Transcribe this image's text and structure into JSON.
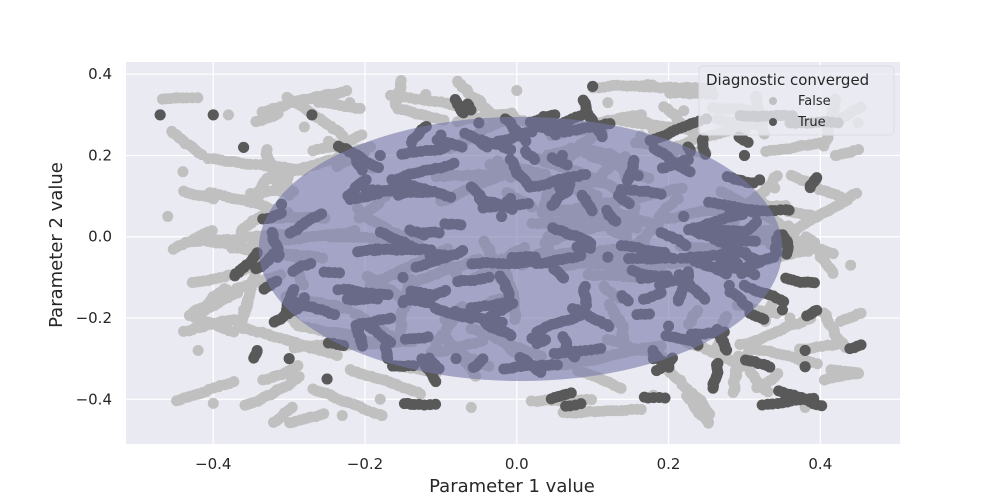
{
  "colors": {
    "background": "#eaeaf2",
    "grid": "#ffffff",
    "false_series": "#c0c0c0",
    "true_series": "#595959",
    "ellipse_fill": "#7575a8"
  },
  "chart_data": {
    "type": "scatter",
    "xlabel": "Parameter 1 value",
    "ylabel": "Parameter 2 value",
    "xlim": [
      -0.515,
      0.505
    ],
    "ylim": [
      -0.51,
      0.43
    ],
    "xticks": [
      -0.4,
      -0.2,
      0.0,
      0.2,
      0.4
    ],
    "xtick_labels": [
      "−0.4",
      "−0.2",
      "0.0",
      "0.2",
      "0.4"
    ],
    "yticks": [
      -0.4,
      -0.2,
      0.0,
      0.2,
      0.4
    ],
    "ytick_labels": [
      "−0.4",
      "−0.2",
      "0.0",
      "0.2",
      "0.4"
    ],
    "grid": true,
    "legend": {
      "title": "Diagnostic converged",
      "placement": "top-right",
      "entries": [
        "False",
        "True"
      ]
    },
    "series": [
      {
        "name": "False",
        "color": "#c0c0c0",
        "point_count_estimate": "thousands of points forming trajectories across x ≈ −0.47..0.45, y ≈ −0.46..0.38",
        "sample_points": [
          [
            -0.46,
            0.05
          ],
          [
            -0.44,
            0.16
          ],
          [
            -0.42,
            -0.28
          ],
          [
            -0.4,
            -0.41
          ],
          [
            -0.38,
            0.3
          ],
          [
            -0.36,
            -0.18
          ],
          [
            -0.34,
            0.1
          ],
          [
            -0.3,
            -0.34
          ],
          [
            -0.28,
            0.27
          ],
          [
            -0.22,
            0.33
          ],
          [
            -0.18,
            -0.4
          ],
          [
            -0.12,
            0.35
          ],
          [
            -0.06,
            -0.42
          ],
          [
            0.0,
            0.36
          ],
          [
            0.06,
            -0.4
          ],
          [
            0.12,
            0.33
          ],
          [
            0.18,
            -0.39
          ],
          [
            0.22,
            0.31
          ],
          [
            0.26,
            -0.36
          ],
          [
            0.3,
            0.26
          ],
          [
            0.34,
            0.12
          ],
          [
            0.36,
            -0.2
          ],
          [
            0.38,
            0.05
          ],
          [
            0.4,
            -0.05
          ],
          [
            0.42,
            0.2
          ],
          [
            0.44,
            -0.07
          ],
          [
            0.45,
            0.28
          ],
          [
            0.38,
            -0.42
          ],
          [
            0.25,
            -0.45
          ],
          [
            -0.23,
            -0.44
          ]
        ]
      },
      {
        "name": "True",
        "color": "#595959",
        "point_count_estimate": "thousands of points, denser within the ellipse region",
        "sample_points": [
          [
            -0.47,
            0.3
          ],
          [
            -0.4,
            0.3
          ],
          [
            -0.36,
            0.22
          ],
          [
            -0.31,
            0.08
          ],
          [
            -0.28,
            -0.15
          ],
          [
            -0.27,
            0.3
          ],
          [
            -0.25,
            -0.35
          ],
          [
            -0.2,
            0.12
          ],
          [
            -0.15,
            -0.1
          ],
          [
            -0.1,
            0.25
          ],
          [
            -0.08,
            -0.3
          ],
          [
            -0.02,
            0.05
          ],
          [
            0.02,
            -0.25
          ],
          [
            0.06,
            0.2
          ],
          [
            0.1,
            0.37
          ],
          [
            0.12,
            -0.05
          ],
          [
            0.16,
            0.15
          ],
          [
            0.18,
            -0.3
          ],
          [
            0.22,
            0.05
          ],
          [
            0.25,
            0.29
          ],
          [
            0.28,
            -0.12
          ],
          [
            0.3,
            0.2
          ],
          [
            0.32,
            0.14
          ],
          [
            0.35,
            -0.18
          ],
          [
            0.38,
            -0.28
          ],
          [
            0.38,
            -0.32
          ],
          [
            0.2,
            -0.22
          ],
          [
            -0.05,
            0.28
          ],
          [
            -0.3,
            -0.3
          ],
          [
            -0.18,
            0.2
          ]
        ]
      }
    ],
    "annotations": [
      {
        "type": "ellipse",
        "center": [
          0.005,
          -0.03
        ],
        "x_radius": 0.345,
        "y_radius": 0.325,
        "fill": "#7575a8",
        "alpha": 0.6
      }
    ]
  }
}
